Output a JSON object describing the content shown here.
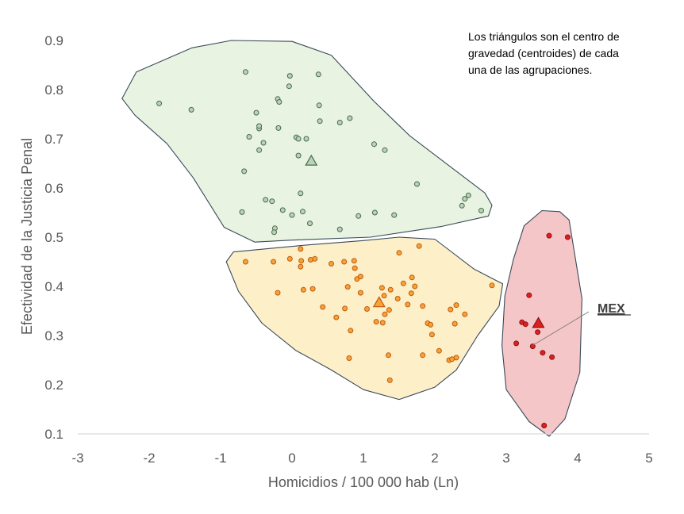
{
  "chart_data": {
    "type": "scatter",
    "xlabel": "Homicidios / 100 000 hab (Ln)",
    "ylabel": "Efectividad de la Justicia Penal",
    "xlim": [
      -3,
      5
    ],
    "ylim": [
      0.1,
      0.9
    ],
    "x_ticks": [
      "-3",
      "-2",
      "-1",
      "0",
      "1",
      "2",
      "3",
      "4",
      "5"
    ],
    "y_ticks": [
      "0.1",
      "0.2",
      "0.3",
      "0.4",
      "0.5",
      "0.6",
      "0.7",
      "0.8",
      "0.9"
    ],
    "note": [
      "Los triángulos son el centro de",
      "gravedad (centroides) de cada",
      "una de las  agrupaciones."
    ],
    "highlight_label": "MEX",
    "grid": false,
    "series": [
      {
        "color": "#b9d3b9",
        "edge": "#4a6b4a",
        "hull_fill": "#e8f3e2",
        "centroid": [
          0.27,
          0.655
        ],
        "points": [
          [
            -1.86,
            0.772
          ],
          [
            -1.41,
            0.759
          ],
          [
            -0.65,
            0.836
          ],
          [
            -0.6,
            0.704
          ],
          [
            -0.5,
            0.753
          ],
          [
            -0.46,
            0.721
          ],
          [
            -0.46,
            0.677
          ],
          [
            -0.4,
            0.692
          ],
          [
            -0.46,
            0.726
          ],
          [
            -0.2,
            0.781
          ],
          [
            -0.18,
            0.775
          ],
          [
            -0.19,
            0.722
          ],
          [
            -0.03,
            0.828
          ],
          [
            -0.04,
            0.807
          ],
          [
            0.06,
            0.703
          ],
          [
            0.09,
            0.7
          ],
          [
            0.2,
            0.7
          ],
          [
            0.09,
            0.666
          ],
          [
            0.37,
            0.831
          ],
          [
            0.38,
            0.768
          ],
          [
            0.39,
            0.736
          ],
          [
            0.67,
            0.733
          ],
          [
            0.81,
            0.742
          ],
          [
            -0.67,
            0.634
          ],
          [
            -0.37,
            0.576
          ],
          [
            -0.28,
            0.573
          ],
          [
            -0.13,
            0.555
          ],
          [
            0.0,
            0.545
          ],
          [
            0.12,
            0.589
          ],
          [
            0.15,
            0.552
          ],
          [
            0.25,
            0.528
          ],
          [
            -0.7,
            0.551
          ],
          [
            -0.24,
            0.518
          ],
          [
            -0.25,
            0.51
          ],
          [
            0.67,
            0.516
          ],
          [
            0.93,
            0.543
          ],
          [
            1.16,
            0.55
          ],
          [
            1.15,
            0.689
          ],
          [
            1.3,
            0.677
          ],
          [
            1.43,
            0.545
          ],
          [
            1.75,
            0.608
          ],
          [
            2.42,
            0.578
          ],
          [
            2.47,
            0.585
          ],
          [
            2.38,
            0.564
          ],
          [
            2.65,
            0.554
          ]
        ]
      },
      {
        "color": "#f4a23a",
        "edge": "#c25a0c",
        "hull_fill": "#fdf0c8",
        "centroid": [
          1.22,
          0.367
        ],
        "points": [
          [
            -0.65,
            0.45
          ],
          [
            -0.26,
            0.45
          ],
          [
            -0.03,
            0.456
          ],
          [
            0.12,
            0.476
          ],
          [
            0.13,
            0.452
          ],
          [
            0.12,
            0.44
          ],
          [
            0.26,
            0.454
          ],
          [
            0.32,
            0.456
          ],
          [
            0.55,
            0.446
          ],
          [
            0.73,
            0.45
          ],
          [
            0.87,
            0.452
          ],
          [
            0.88,
            0.437
          ],
          [
            0.91,
            0.415
          ],
          [
            0.96,
            0.42
          ],
          [
            1.5,
            0.468
          ],
          [
            1.78,
            0.482
          ],
          [
            1.56,
            0.406
          ],
          [
            1.68,
            0.418
          ],
          [
            1.72,
            0.4
          ],
          [
            1.67,
            0.386
          ],
          [
            0.29,
            0.395
          ],
          [
            0.16,
            0.393
          ],
          [
            -0.2,
            0.387
          ],
          [
            0.78,
            0.399
          ],
          [
            0.96,
            0.387
          ],
          [
            1.26,
            0.397
          ],
          [
            1.38,
            0.393
          ],
          [
            1.29,
            0.381
          ],
          [
            1.48,
            0.375
          ],
          [
            1.62,
            0.363
          ],
          [
            1.36,
            0.352
          ],
          [
            0.43,
            0.358
          ],
          [
            0.74,
            0.355
          ],
          [
            1.05,
            0.354
          ],
          [
            1.3,
            0.343
          ],
          [
            1.27,
            0.326
          ],
          [
            0.62,
            0.337
          ],
          [
            0.82,
            0.31
          ],
          [
            1.18,
            0.328
          ],
          [
            1.83,
            0.36
          ],
          [
            2.22,
            0.353
          ],
          [
            2.3,
            0.362
          ],
          [
            2.42,
            0.343
          ],
          [
            1.9,
            0.325
          ],
          [
            1.94,
            0.322
          ],
          [
            2.28,
            0.324
          ],
          [
            1.96,
            0.302
          ],
          [
            2.06,
            0.269
          ],
          [
            2.3,
            0.255
          ],
          [
            2.2,
            0.25
          ],
          [
            2.24,
            0.252
          ],
          [
            1.83,
            0.26
          ],
          [
            1.35,
            0.26
          ],
          [
            0.8,
            0.254
          ],
          [
            1.37,
            0.209
          ],
          [
            2.8,
            0.402
          ]
        ]
      },
      {
        "color": "#e02020",
        "edge": "#8a1010",
        "hull_fill": "#f4c6c8",
        "centroid": [
          3.45,
          0.325
        ],
        "points": [
          [
            3.6,
            0.503
          ],
          [
            3.86,
            0.5
          ],
          [
            3.32,
            0.382
          ],
          [
            3.22,
            0.327
          ],
          [
            3.27,
            0.323
          ],
          [
            3.37,
            0.278
          ],
          [
            3.44,
            0.307
          ],
          [
            3.51,
            0.265
          ],
          [
            3.64,
            0.256
          ],
          [
            3.14,
            0.284
          ],
          [
            3.53,
            0.117
          ]
        ]
      }
    ],
    "hulls": [
      [
        [
          -2.38,
          0.782
        ],
        [
          -2.18,
          0.836
        ],
        [
          -1.4,
          0.885
        ],
        [
          -0.85,
          0.9
        ],
        [
          0.0,
          0.898
        ],
        [
          0.55,
          0.87
        ],
        [
          1.15,
          0.776
        ],
        [
          1.65,
          0.706
        ],
        [
          2.7,
          0.59
        ],
        [
          2.8,
          0.565
        ],
        [
          2.75,
          0.543
        ],
        [
          2.1,
          0.522
        ],
        [
          1.1,
          0.5
        ],
        [
          0.0,
          0.494
        ],
        [
          -0.52,
          0.49
        ],
        [
          -0.95,
          0.52
        ],
        [
          -1.38,
          0.62
        ],
        [
          -1.75,
          0.69
        ],
        [
          -2.2,
          0.748
        ]
      ],
      [
        [
          -0.92,
          0.45
        ],
        [
          -0.82,
          0.47
        ],
        [
          0.2,
          0.484
        ],
        [
          1.0,
          0.493
        ],
        [
          1.5,
          0.5
        ],
        [
          2.0,
          0.496
        ],
        [
          2.55,
          0.435
        ],
        [
          2.95,
          0.405
        ],
        [
          2.9,
          0.36
        ],
        [
          2.6,
          0.3
        ],
        [
          2.3,
          0.23
        ],
        [
          2.0,
          0.195
        ],
        [
          1.5,
          0.17
        ],
        [
          1.0,
          0.19
        ],
        [
          0.55,
          0.23
        ],
        [
          0.05,
          0.27
        ],
        [
          -0.42,
          0.325
        ],
        [
          -0.75,
          0.39
        ]
      ],
      [
        [
          3.25,
          0.523
        ],
        [
          3.5,
          0.554
        ],
        [
          3.75,
          0.552
        ],
        [
          3.88,
          0.535
        ],
        [
          4.06,
          0.375
        ],
        [
          4.03,
          0.225
        ],
        [
          3.82,
          0.13
        ],
        [
          3.6,
          0.095
        ],
        [
          3.32,
          0.125
        ],
        [
          3.0,
          0.19
        ],
        [
          2.94,
          0.28
        ],
        [
          2.98,
          0.38
        ],
        [
          3.1,
          0.455
        ]
      ]
    ]
  }
}
